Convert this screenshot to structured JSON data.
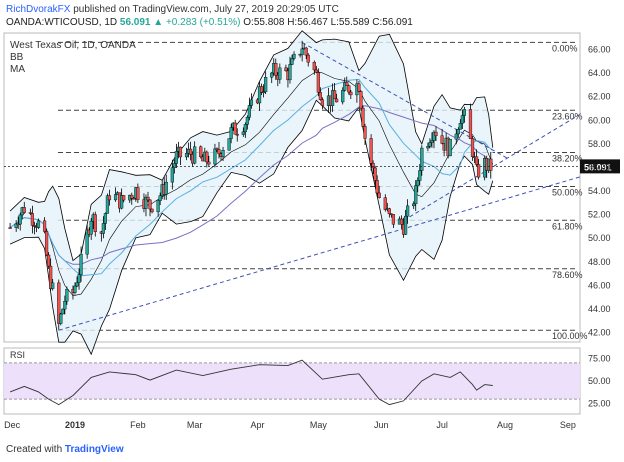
{
  "header": {
    "author": "RichDvorakFX",
    "published_text": "published on TradingView.com, July 27, 2019 20:29:05 UTC",
    "symbol": "OANDA:WTICOUSD, 1D",
    "last": "56.091",
    "change_symbol": "▲",
    "change": "+0.283 (+0.51%)",
    "ohlc": {
      "o_label": "O:",
      "o": "55.808",
      "h_label": "H:",
      "h": "56.467",
      "l_label": "L:",
      "l": "55.589",
      "c_label": "C:",
      "c": "56.091"
    }
  },
  "footer": {
    "created_with": "Created with",
    "brand": "TradingView"
  },
  "colors": {
    "up": "#26a69a",
    "down": "#ef5350",
    "bb": "#000000",
    "bb_fill": "#e3f2fa",
    "ma": "#7b70c4",
    "ma2": "#5aaee0",
    "fib": "#444444",
    "trend": "#3f51b5",
    "rsi": "#333333",
    "rsi_band": "#ede0fa"
  },
  "chart_data": {
    "type": "candlestick",
    "legend": [
      "West Texas Oil, 1D, OANDA",
      "BB",
      "MA"
    ],
    "x_ticks": [
      {
        "label": "Dec",
        "date": "2018-12-01"
      },
      {
        "label": "2019",
        "date": "2019-01-01"
      },
      {
        "label": "Feb",
        "date": "2019-02-01"
      },
      {
        "label": "Mar",
        "date": "2019-03-01"
      },
      {
        "label": "Apr",
        "date": "2019-04-01"
      },
      {
        "label": "May",
        "date": "2019-05-01"
      },
      {
        "label": "Jun",
        "date": "2019-06-01"
      },
      {
        "label": "Jul",
        "date": "2019-07-01"
      },
      {
        "label": "Aug",
        "date": "2019-08-01"
      },
      {
        "label": "Sep",
        "date": "2019-09-01"
      }
    ],
    "x_range": [
      "2018-11-27",
      "2019-09-07"
    ],
    "y_range": [
      41.2,
      67.4
    ],
    "y_ticks": [
      "42.00",
      "44.00",
      "46.00",
      "48.00",
      "50.00",
      "52.00",
      "54.00",
      "56.00",
      "58.00",
      "60.00",
      "62.00",
      "64.00",
      "66.00"
    ],
    "last_price": "56.091",
    "fib_levels": [
      {
        "label": "0.00%",
        "value": 66.6
      },
      {
        "label": "23.60%",
        "value": 60.85
      },
      {
        "label": "38.20%",
        "value": 57.27
      },
      {
        "label": "50.00%",
        "value": 54.38
      },
      {
        "label": "61.80%",
        "value": 51.52
      },
      {
        "label": "78.60%",
        "value": 47.41
      },
      {
        "label": "100.00%",
        "value": 42.2
      }
    ],
    "trendlines": [
      {
        "from": [
          "2018-12-24",
          42.2
        ],
        "to": [
          "2019-09-07",
          55.2
        ]
      },
      {
        "from": [
          "2019-04-23",
          66.6
        ],
        "to": [
          "2019-08-02",
          56.8
        ]
      },
      {
        "from": [
          "2019-06-12",
          51.5
        ],
        "to": [
          "2019-09-07",
          60.5
        ]
      }
    ],
    "closes": [
      {
        "date": "2018-11-30",
        "close": 50.9
      },
      {
        "date": "2018-12-07",
        "close": 52.6
      },
      {
        "date": "2018-12-14",
        "close": 51.2
      },
      {
        "date": "2018-12-17",
        "close": 49.8
      },
      {
        "date": "2018-12-19",
        "close": 47.2
      },
      {
        "date": "2018-12-21",
        "close": 45.6
      },
      {
        "date": "2018-12-24",
        "close": 42.6
      },
      {
        "date": "2018-12-27",
        "close": 44.8
      },
      {
        "date": "2018-12-31",
        "close": 45.4
      },
      {
        "date": "2019-01-04",
        "close": 47.9
      },
      {
        "date": "2019-01-09",
        "close": 51.9
      },
      {
        "date": "2019-01-14",
        "close": 50.5
      },
      {
        "date": "2019-01-18",
        "close": 53.8
      },
      {
        "date": "2019-01-24",
        "close": 53.1
      },
      {
        "date": "2019-01-31",
        "close": 54.1
      },
      {
        "date": "2019-02-07",
        "close": 52.7
      },
      {
        "date": "2019-02-13",
        "close": 53.9
      },
      {
        "date": "2019-02-20",
        "close": 56.9
      },
      {
        "date": "2019-02-27",
        "close": 57.2
      },
      {
        "date": "2019-03-05",
        "close": 56.5
      },
      {
        "date": "2019-03-12",
        "close": 57.0
      },
      {
        "date": "2019-03-19",
        "close": 59.0
      },
      {
        "date": "2019-03-26",
        "close": 59.9
      },
      {
        "date": "2019-04-02",
        "close": 62.5
      },
      {
        "date": "2019-04-09",
        "close": 64.1
      },
      {
        "date": "2019-04-16",
        "close": 64.0
      },
      {
        "date": "2019-04-23",
        "close": 66.3
      },
      {
        "date": "2019-04-30",
        "close": 63.8
      },
      {
        "date": "2019-05-03",
        "close": 61.9
      },
      {
        "date": "2019-05-09",
        "close": 61.7
      },
      {
        "date": "2019-05-16",
        "close": 62.8
      },
      {
        "date": "2019-05-21",
        "close": 63.1
      },
      {
        "date": "2019-05-24",
        "close": 58.6
      },
      {
        "date": "2019-05-31",
        "close": 53.5
      },
      {
        "date": "2019-06-05",
        "close": 51.7
      },
      {
        "date": "2019-06-12",
        "close": 51.1
      },
      {
        "date": "2019-06-18",
        "close": 53.8
      },
      {
        "date": "2019-06-21",
        "close": 57.5
      },
      {
        "date": "2019-06-27",
        "close": 59.4
      },
      {
        "date": "2019-07-01",
        "close": 58.2
      },
      {
        "date": "2019-07-05",
        "close": 57.6
      },
      {
        "date": "2019-07-10",
        "close": 60.4
      },
      {
        "date": "2019-07-12",
        "close": 60.2
      },
      {
        "date": "2019-07-16",
        "close": 57.5
      },
      {
        "date": "2019-07-18",
        "close": 55.5
      },
      {
        "date": "2019-07-22",
        "close": 56.3
      },
      {
        "date": "2019-07-24",
        "close": 56.0
      },
      {
        "date": "2019-07-26",
        "close": 56.09
      }
    ],
    "rsi": {
      "label": "RSI",
      "y_ticks": [
        "25.00",
        "50.00",
        "75.00"
      ],
      "y_range": [
        18,
        82
      ],
      "band": [
        30,
        70
      ],
      "points": [
        {
          "date": "2018-11-30",
          "value": 38
        },
        {
          "date": "2018-12-07",
          "value": 44
        },
        {
          "date": "2018-12-14",
          "value": 38
        },
        {
          "date": "2018-12-19",
          "value": 30
        },
        {
          "date": "2018-12-24",
          "value": 24
        },
        {
          "date": "2018-12-31",
          "value": 34
        },
        {
          "date": "2019-01-09",
          "value": 54
        },
        {
          "date": "2019-01-18",
          "value": 60
        },
        {
          "date": "2019-01-31",
          "value": 57
        },
        {
          "date": "2019-02-07",
          "value": 51
        },
        {
          "date": "2019-02-20",
          "value": 62
        },
        {
          "date": "2019-03-05",
          "value": 56
        },
        {
          "date": "2019-03-19",
          "value": 63
        },
        {
          "date": "2019-04-02",
          "value": 68
        },
        {
          "date": "2019-04-16",
          "value": 67
        },
        {
          "date": "2019-04-23",
          "value": 73
        },
        {
          "date": "2019-05-03",
          "value": 52
        },
        {
          "date": "2019-05-16",
          "value": 57
        },
        {
          "date": "2019-05-21",
          "value": 58
        },
        {
          "date": "2019-05-31",
          "value": 30
        },
        {
          "date": "2019-06-05",
          "value": 24
        },
        {
          "date": "2019-06-12",
          "value": 28
        },
        {
          "date": "2019-06-21",
          "value": 50
        },
        {
          "date": "2019-06-27",
          "value": 58
        },
        {
          "date": "2019-07-05",
          "value": 54
        },
        {
          "date": "2019-07-10",
          "value": 60
        },
        {
          "date": "2019-07-16",
          "value": 46
        },
        {
          "date": "2019-07-18",
          "value": 40
        },
        {
          "date": "2019-07-22",
          "value": 46
        },
        {
          "date": "2019-07-26",
          "value": 45
        }
      ]
    }
  }
}
